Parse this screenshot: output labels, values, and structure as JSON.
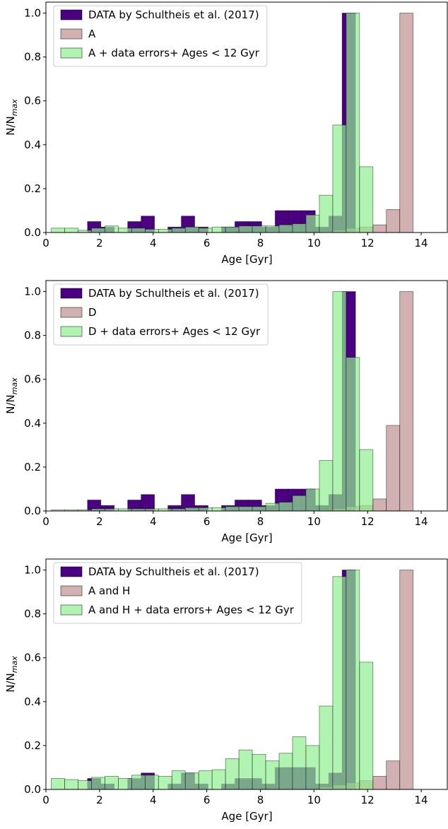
{
  "chart_data": [
    {
      "type": "histogram",
      "xlabel": "Age [Gyr]",
      "ylabel": "N/N",
      "ylabel_subscript": "max",
      "xlim": [
        0,
        15
      ],
      "ylim": [
        0,
        1.05
      ],
      "xticks": [
        0,
        2,
        4,
        6,
        8,
        10,
        12,
        14
      ],
      "yticks": [
        {
          "value": 0,
          "label": "0.0"
        },
        0.2,
        0.4,
        0.6,
        0.8,
        {
          "value": 1,
          "label": "1.0"
        }
      ],
      "legend": "upper left",
      "series": [
        {
          "name": "DATA by Schultheis et al. (2017)",
          "color": "#4b0082",
          "alpha": 1,
          "bins": [
            1.55,
            2.05,
            2.55,
            3.05,
            3.55,
            4.05,
            4.55,
            5.05,
            5.55,
            6.05,
            6.55,
            7.05,
            7.55,
            8.05,
            8.55,
            9.05,
            9.55,
            10.05,
            10.55,
            11.05,
            11.55
          ],
          "values": [
            0.05,
            0.025,
            0,
            0.05,
            0.075,
            0,
            0.025,
            0.075,
            0.025,
            0,
            0.025,
            0.05,
            0.05,
            0.025,
            0.1,
            0.1,
            0.1,
            0.025,
            0.075,
            1.0
          ]
        },
        {
          "name": "A",
          "color": "#bc8f8f",
          "alpha": 0.7,
          "bins": [
            10.2,
            10.7,
            11.2,
            11.7,
            12.2,
            12.7,
            13.2,
            13.7
          ],
          "values": [
            0.005,
            0.01,
            0.02,
            0.025,
            0.035,
            0.105,
            1.0
          ]
        },
        {
          "name": "A + data errors+ Ages < 12 Gyr",
          "color": "#90ee90",
          "alpha": 0.7,
          "bins": [
            0.2,
            0.7,
            1.2,
            1.7,
            2.2,
            2.7,
            3.2,
            3.7,
            4.2,
            4.7,
            5.2,
            5.7,
            6.2,
            6.7,
            7.2,
            7.7,
            8.2,
            8.7,
            9.2,
            9.7,
            10.2,
            10.7,
            11.2,
            11.7,
            12.2
          ],
          "values": [
            0.02,
            0.02,
            0.01,
            0.02,
            0.03,
            0.02,
            0.02,
            0.015,
            0.015,
            0.02,
            0.025,
            0.02,
            0.025,
            0.025,
            0.03,
            0.03,
            0.03,
            0.035,
            0.04,
            0.08,
            0.17,
            0.49,
            1.0,
            0.3
          ]
        }
      ]
    },
    {
      "type": "histogram",
      "xlabel": "Age [Gyr]",
      "ylabel": "N/N",
      "ylabel_subscript": "max",
      "xlim": [
        0,
        15
      ],
      "ylim": [
        0,
        1.05
      ],
      "xticks": [
        0,
        2,
        4,
        6,
        8,
        10,
        12,
        14
      ],
      "yticks": [
        {
          "value": 0,
          "label": "0.0"
        },
        0.2,
        0.4,
        0.6,
        0.8,
        {
          "value": 1,
          "label": "1.0"
        }
      ],
      "legend": "upper left",
      "series": [
        {
          "name": "DATA by Schultheis et al. (2017)",
          "color": "#4b0082",
          "alpha": 1,
          "bins": [
            1.55,
            2.05,
            2.55,
            3.05,
            3.55,
            4.05,
            4.55,
            5.05,
            5.55,
            6.05,
            6.55,
            7.05,
            7.55,
            8.05,
            8.55,
            9.05,
            9.55,
            10.05,
            10.55,
            11.05,
            11.55
          ],
          "values": [
            0.05,
            0.025,
            0,
            0.05,
            0.075,
            0,
            0.025,
            0.075,
            0.025,
            0,
            0.025,
            0.05,
            0.05,
            0.025,
            0.1,
            0.1,
            0.1,
            0.025,
            0.075,
            1.0
          ]
        },
        {
          "name": "D",
          "color": "#bc8f8f",
          "alpha": 0.7,
          "bins": [
            10.2,
            10.7,
            11.2,
            11.7,
            12.2,
            12.7,
            13.2,
            13.7
          ],
          "values": [
            0.005,
            0.01,
            0.02,
            0.025,
            0.055,
            0.39,
            1.0
          ]
        },
        {
          "name": "D + data errors+ Ages < 12 Gyr",
          "color": "#90ee90",
          "alpha": 0.7,
          "bins": [
            0.2,
            0.7,
            1.2,
            1.7,
            2.2,
            2.7,
            3.2,
            3.7,
            4.2,
            4.7,
            5.2,
            5.7,
            6.2,
            6.7,
            7.2,
            7.7,
            8.2,
            8.7,
            9.2,
            9.7,
            10.2,
            10.7,
            11.2,
            11.7,
            12.2
          ],
          "values": [
            0.005,
            0.005,
            0.005,
            0.01,
            0.01,
            0.01,
            0.01,
            0.01,
            0.01,
            0.01,
            0.015,
            0.015,
            0.015,
            0.02,
            0.02,
            0.02,
            0.035,
            0.04,
            0.07,
            0.1,
            0.23,
            1.0,
            0.7,
            0.28
          ]
        }
      ]
    },
    {
      "type": "histogram",
      "xlabel": "Age [Gyr]",
      "ylabel": "N/N",
      "ylabel_subscript": "max",
      "xlim": [
        0,
        15
      ],
      "ylim": [
        0,
        1.05
      ],
      "xticks": [
        0,
        2,
        4,
        6,
        8,
        10,
        12,
        14
      ],
      "yticks": [
        {
          "value": 0,
          "label": "0.0"
        },
        0.2,
        0.4,
        0.6,
        0.8,
        {
          "value": 1,
          "label": "1.0"
        }
      ],
      "legend": "upper left",
      "series": [
        {
          "name": "DATA by Schultheis et al. (2017)",
          "color": "#4b0082",
          "alpha": 1,
          "bins": [
            1.55,
            2.05,
            2.55,
            3.05,
            3.55,
            4.05,
            4.55,
            5.05,
            5.55,
            6.05,
            6.55,
            7.05,
            7.55,
            8.05,
            8.55,
            9.05,
            9.55,
            10.05,
            10.55,
            11.05,
            11.55
          ],
          "values": [
            0.05,
            0.025,
            0,
            0.05,
            0.075,
            0,
            0.025,
            0.075,
            0.025,
            0,
            0.025,
            0.05,
            0.05,
            0.025,
            0.1,
            0.1,
            0.1,
            0.025,
            0.075,
            1.0
          ]
        },
        {
          "name": "A and H",
          "color": "#bc8f8f",
          "alpha": 0.7,
          "bins": [
            10.2,
            10.7,
            11.2,
            11.7,
            12.2,
            12.7,
            13.2,
            13.7
          ],
          "values": [
            0.01,
            0.02,
            0.03,
            0.04,
            0.06,
            0.13,
            1.0
          ]
        },
        {
          "name": "A and H + data errors+ Ages < 12 Gyr",
          "color": "#90ee90",
          "alpha": 0.7,
          "bins": [
            0.2,
            0.7,
            1.2,
            1.7,
            2.2,
            2.7,
            3.2,
            3.7,
            4.2,
            4.7,
            5.2,
            5.7,
            6.2,
            6.7,
            7.2,
            7.7,
            8.2,
            8.7,
            9.2,
            9.7,
            10.2,
            10.7,
            11.2,
            11.7,
            12.2
          ],
          "values": [
            0.05,
            0.045,
            0.04,
            0.055,
            0.06,
            0.05,
            0.065,
            0.065,
            0.06,
            0.085,
            0.075,
            0.085,
            0.09,
            0.14,
            0.18,
            0.16,
            0.13,
            0.165,
            0.24,
            0.2,
            0.38,
            0.97,
            1.0,
            0.58
          ]
        }
      ]
    }
  ]
}
